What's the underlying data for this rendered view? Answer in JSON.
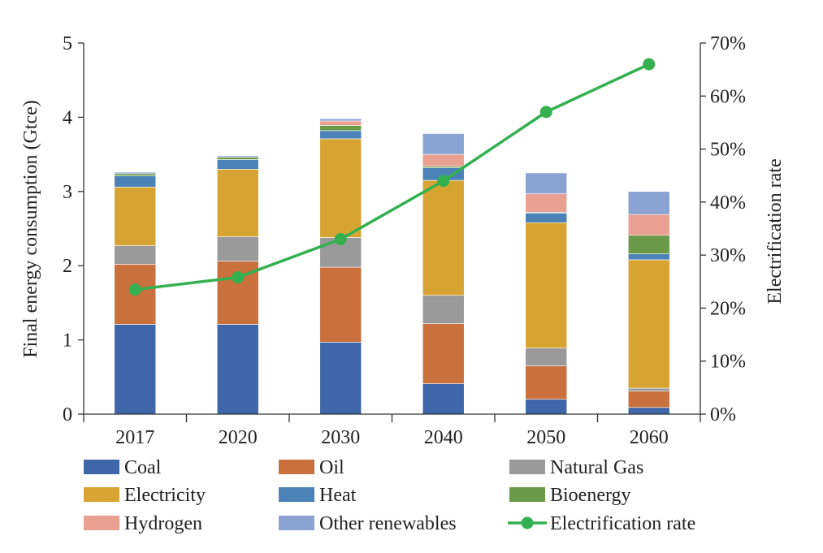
{
  "chart_data": {
    "type": "bar",
    "stacked": true,
    "categories": [
      "2017",
      "2020",
      "2030",
      "2040",
      "2050",
      "2060"
    ],
    "ylabel": "Final energy consumption (Gtce)",
    "y2label": "Electrification rate",
    "ylim": [
      0,
      5
    ],
    "yticks": [
      "0",
      "1",
      "2",
      "3",
      "4",
      "5"
    ],
    "y2lim": [
      0,
      70
    ],
    "y2ticks": [
      "0%",
      "10%",
      "20%",
      "30%",
      "40%",
      "50%",
      "60%",
      "70%"
    ],
    "series": [
      {
        "name": "Coal",
        "color": "#3f66a8",
        "values": [
          1.21,
          1.21,
          0.97,
          0.41,
          0.2,
          0.09
        ]
      },
      {
        "name": "Oil",
        "color": "#c9703d",
        "values": [
          0.81,
          0.85,
          1.01,
          0.81,
          0.45,
          0.22
        ]
      },
      {
        "name": "Natural Gas",
        "color": "#9a9a9a",
        "values": [
          0.25,
          0.33,
          0.4,
          0.38,
          0.24,
          0.04
        ]
      },
      {
        "name": "Electricity",
        "color": "#d7a433",
        "values": [
          0.79,
          0.91,
          1.33,
          1.55,
          1.69,
          1.73
        ]
      },
      {
        "name": "Heat",
        "color": "#4b82b8",
        "values": [
          0.15,
          0.13,
          0.11,
          0.17,
          0.13,
          0.08
        ]
      },
      {
        "name": "Bioenergy",
        "color": "#6a9a48",
        "values": [
          0.03,
          0.03,
          0.07,
          0.02,
          0.01,
          0.25
        ]
      },
      {
        "name": "Hydrogen",
        "color": "#eaa091",
        "values": [
          0.0,
          0.0,
          0.06,
          0.16,
          0.25,
          0.28
        ]
      },
      {
        "name": "Other renewables",
        "color": "#8aa3d3",
        "values": [
          0.02,
          0.02,
          0.03,
          0.28,
          0.28,
          0.31
        ]
      }
    ],
    "line": {
      "name": "Electrification rate",
      "color": "#34b050",
      "axis": "right",
      "unit": "%",
      "values": [
        23.5,
        25.8,
        33.0,
        44.0,
        57.0,
        66.0
      ]
    }
  }
}
